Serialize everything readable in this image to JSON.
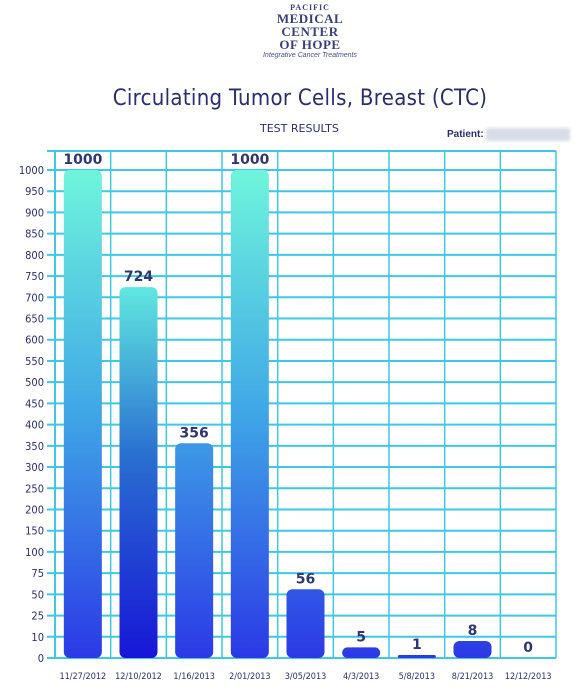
{
  "logo": {
    "line1": "PACIFIC",
    "line2": "MEDICAL CENTER",
    "line3": "OF HOPE",
    "line4": "Integrative Cancer Treatments"
  },
  "patient_label": "Patient:",
  "colors": {
    "grid": "#3ec8e6",
    "bar_top": "#6ff5dc",
    "bar_bottom": "#2b39e6",
    "text": "#2a2e6e"
  },
  "chart_data": {
    "type": "bar",
    "title": "Circulating  Tumor Cells, Breast  (CTC)",
    "subtitle": "TEST RESULTS",
    "categories": [
      "11/27/2012",
      "12/10/2012",
      "1/16/2013",
      "2/01/2013",
      "3/05/2013",
      "4/3/2013",
      "5/8/2013",
      "8/21/2013",
      "12/12/2013"
    ],
    "values": [
      1000,
      724,
      356,
      1000,
      56,
      5,
      1,
      8,
      0
    ],
    "y_ticks": [
      0,
      10,
      25,
      50,
      75,
      100,
      150,
      200,
      250,
      300,
      350,
      400,
      450,
      500,
      550,
      600,
      650,
      700,
      750,
      800,
      850,
      900,
      950,
      1000
    ],
    "grid": true
  }
}
